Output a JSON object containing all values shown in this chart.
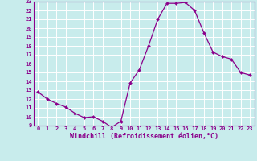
{
  "x": [
    0,
    1,
    2,
    3,
    4,
    5,
    6,
    7,
    8,
    9,
    10,
    11,
    12,
    13,
    14,
    15,
    16,
    17,
    18,
    19,
    20,
    21,
    22,
    23
  ],
  "y": [
    12.8,
    12.0,
    11.5,
    11.1,
    10.4,
    9.9,
    10.0,
    9.5,
    8.8,
    9.5,
    13.8,
    15.3,
    18.0,
    21.0,
    22.8,
    22.8,
    22.9,
    22.0,
    19.5,
    17.3,
    16.8,
    16.5,
    15.0,
    14.7
  ],
  "line_color": "#8B008B",
  "marker": "D",
  "marker_size": 2.0,
  "bg_color": "#c8ecec",
  "grid_color": "#ffffff",
  "xlabel": "Windchill (Refroidissement éolien,°C)",
  "ylabel": "",
  "xlim": [
    -0.5,
    23.5
  ],
  "ylim": [
    9,
    23
  ],
  "yticks": [
    9,
    10,
    11,
    12,
    13,
    14,
    15,
    16,
    17,
    18,
    19,
    20,
    21,
    22,
    23
  ],
  "xticks": [
    0,
    1,
    2,
    3,
    4,
    5,
    6,
    7,
    8,
    9,
    10,
    11,
    12,
    13,
    14,
    15,
    16,
    17,
    18,
    19,
    20,
    21,
    22,
    23
  ],
  "tick_label_fontsize": 5.0,
  "xlabel_fontsize": 6.0,
  "xlabel_color": "#8B008B",
  "tick_label_color": "#8B008B",
  "axis_color": "#8B008B",
  "line_width": 0.9
}
